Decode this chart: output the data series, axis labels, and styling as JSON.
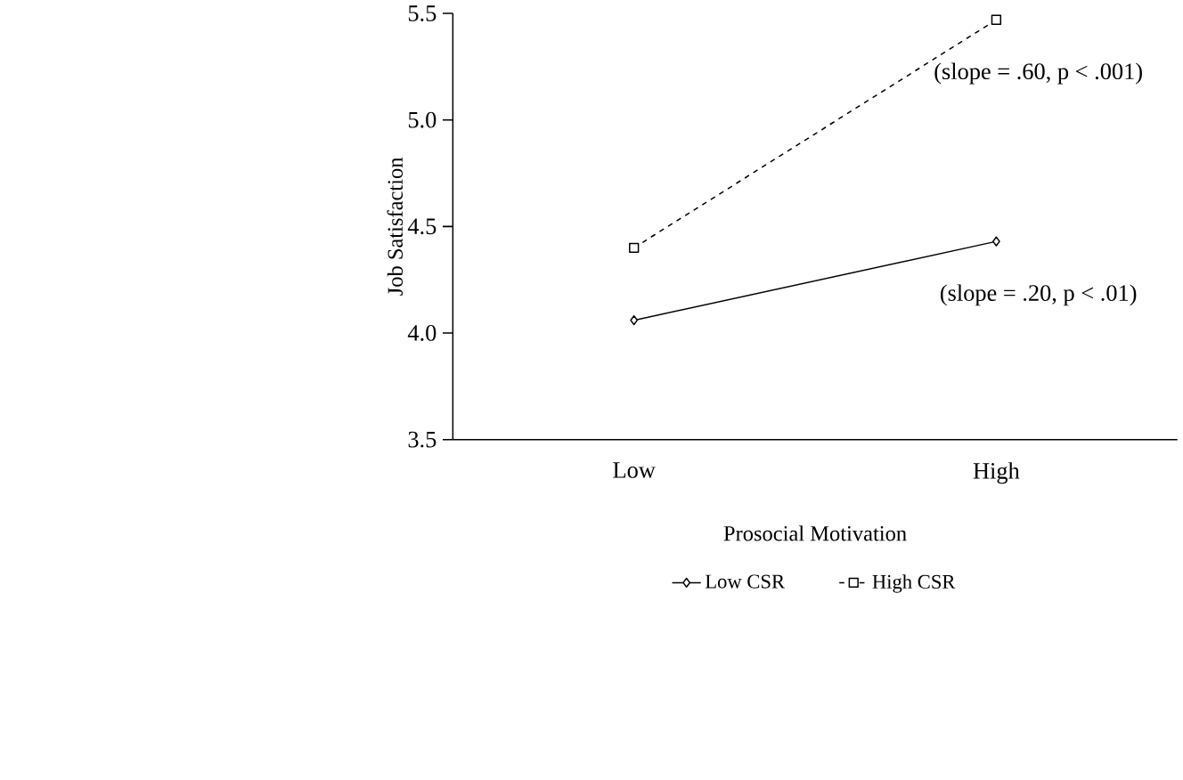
{
  "chart_data": {
    "type": "line",
    "xlabel": "Prosocial Motivation",
    "ylabel": "Job Satisfaction",
    "categories": [
      "Low",
      "High"
    ],
    "series": [
      {
        "name": "Low CSR",
        "color": "#000000",
        "values": [
          4.06,
          4.43
        ],
        "marker": "diamond",
        "line_style": "solid"
      },
      {
        "name": "High CSR",
        "color": "#000000",
        "values": [
          4.4,
          5.47
        ],
        "marker": "square",
        "line_style": "dashed"
      }
    ],
    "ylim": [
      3.5,
      5.5
    ],
    "yticks": [
      {
        "value": 3.5,
        "label": "3.5"
      },
      {
        "value": 4.0,
        "label": "4.0"
      },
      {
        "value": 4.5,
        "label": "4.5"
      },
      {
        "value": 5.0,
        "label": "5.0"
      },
      {
        "value": 5.5,
        "label": "5.5"
      }
    ],
    "annotations": [
      "(slope = .20,  p < .01)",
      "(slope = .60, p < .001)"
    ],
    "grid": false,
    "legend": "bottom"
  }
}
